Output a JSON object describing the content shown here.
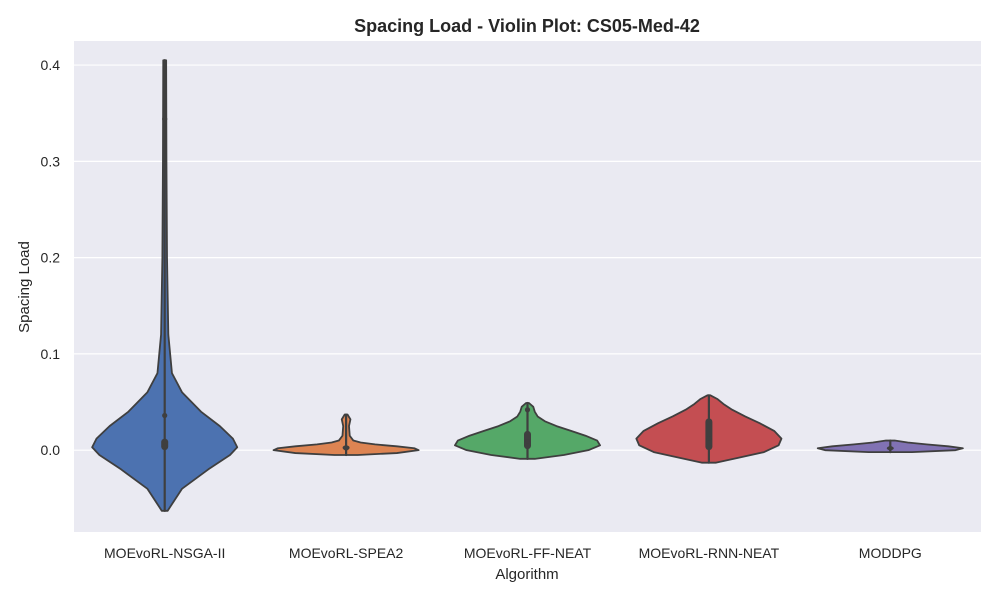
{
  "chart_data": {
    "type": "violin",
    "title": "Spacing Load - Violin Plot: CS05-Med-42",
    "xlabel": "Algorithm",
    "ylabel": "Spacing Load",
    "ylim": [
      -0.085,
      0.425
    ],
    "yticks": [
      0.0,
      0.1,
      0.2,
      0.3,
      0.4
    ],
    "ytick_labels": [
      "0.0",
      "0.1",
      "0.2",
      "0.3",
      "0.4"
    ],
    "grid": true,
    "categories": [
      "MOEvoRL-NSGA-II",
      "MOEvoRL-SPEA2",
      "MOEvoRL-FF-NEAT",
      "MOEvoRL-RNN-NEAT",
      "MODDPG"
    ],
    "colors": [
      "#4c72b0",
      "#dd8452",
      "#55a868",
      "#c44e52",
      "#8172b3"
    ],
    "series": [
      {
        "min": -0.063,
        "max": 0.405,
        "whisker": [
          -0.063,
          0.405
        ],
        "iqr": [
          0.0,
          0.012
        ],
        "median": 0.004,
        "outlier_points": [
          0.344,
          0.036
        ],
        "profile": [
          [
            -0.063,
            0.02
          ],
          [
            -0.04,
            0.12
          ],
          [
            -0.02,
            0.3
          ],
          [
            -0.005,
            0.45
          ],
          [
            0.003,
            0.5
          ],
          [
            0.012,
            0.47
          ],
          [
            0.025,
            0.38
          ],
          [
            0.04,
            0.25
          ],
          [
            0.06,
            0.12
          ],
          [
            0.08,
            0.05
          ],
          [
            0.12,
            0.025
          ],
          [
            0.2,
            0.016
          ],
          [
            0.3,
            0.012
          ],
          [
            0.405,
            0.01
          ]
        ]
      },
      {
        "min": -0.005,
        "max": 0.037,
        "whisker": [
          -0.005,
          0.037
        ],
        "iqr": [
          0.0,
          0.005
        ],
        "median": 0.002,
        "profile": [
          [
            -0.005,
            0.08
          ],
          [
            -0.003,
            0.35
          ],
          [
            0.0,
            0.5
          ],
          [
            0.002,
            0.47
          ],
          [
            0.004,
            0.35
          ],
          [
            0.006,
            0.2
          ],
          [
            0.008,
            0.1
          ],
          [
            0.01,
            0.05
          ],
          [
            0.015,
            0.025
          ],
          [
            0.025,
            0.02
          ],
          [
            0.032,
            0.03
          ],
          [
            0.037,
            0.01
          ]
        ]
      },
      {
        "min": -0.009,
        "max": 0.049,
        "whisker": [
          -0.009,
          0.049
        ],
        "iqr": [
          0.001,
          0.02
        ],
        "median": 0.009,
        "outlier_points": [
          0.042
        ],
        "profile": [
          [
            -0.009,
            0.05
          ],
          [
            -0.005,
            0.25
          ],
          [
            0.0,
            0.42
          ],
          [
            0.005,
            0.5
          ],
          [
            0.01,
            0.48
          ],
          [
            0.015,
            0.4
          ],
          [
            0.02,
            0.3
          ],
          [
            0.025,
            0.2
          ],
          [
            0.03,
            0.12
          ],
          [
            0.035,
            0.07
          ],
          [
            0.04,
            0.05
          ],
          [
            0.045,
            0.04
          ],
          [
            0.049,
            0.01
          ]
        ]
      },
      {
        "min": -0.013,
        "max": 0.057,
        "whisker": [
          -0.013,
          0.057
        ],
        "iqr": [
          0.0,
          0.033
        ],
        "median": 0.012,
        "profile": [
          [
            -0.013,
            0.05
          ],
          [
            -0.008,
            0.2
          ],
          [
            -0.002,
            0.38
          ],
          [
            0.005,
            0.48
          ],
          [
            0.012,
            0.5
          ],
          [
            0.02,
            0.45
          ],
          [
            0.028,
            0.35
          ],
          [
            0.035,
            0.25
          ],
          [
            0.042,
            0.16
          ],
          [
            0.048,
            0.1
          ],
          [
            0.053,
            0.06
          ],
          [
            0.057,
            0.01
          ]
        ]
      },
      {
        "min": -0.002,
        "max": 0.01,
        "whisker": [
          -0.002,
          0.01
        ],
        "iqr": [
          0.0,
          0.004
        ],
        "median": 0.002,
        "profile": [
          [
            -0.002,
            0.15
          ],
          [
            0.0,
            0.45
          ],
          [
            0.002,
            0.5
          ],
          [
            0.004,
            0.4
          ],
          [
            0.006,
            0.25
          ],
          [
            0.008,
            0.12
          ],
          [
            0.01,
            0.03
          ]
        ]
      }
    ]
  }
}
